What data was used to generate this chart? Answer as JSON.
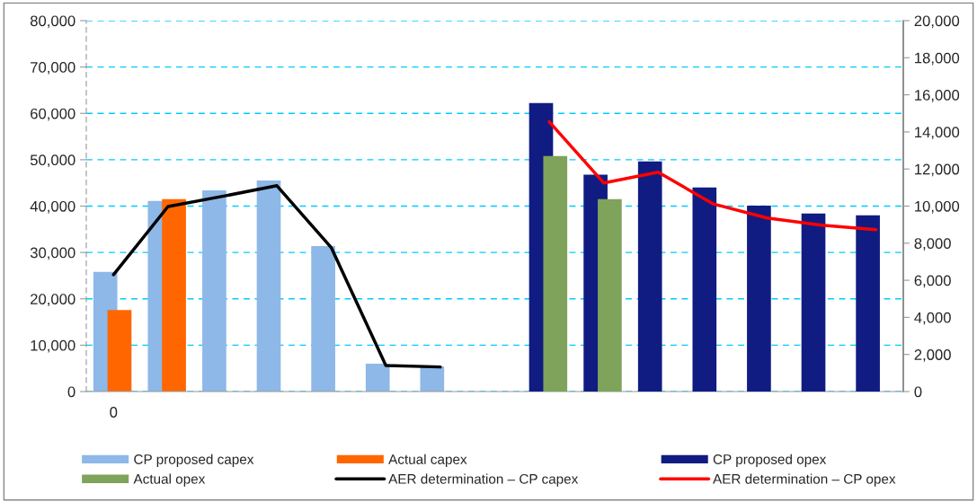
{
  "chart_data": {
    "type": "bar",
    "categories": [
      "0",
      null,
      null,
      null,
      null,
      null,
      null,
      null,
      null,
      null,
      null,
      null,
      null,
      null,
      null
    ],
    "series": [
      {
        "name": "CP proposed capex",
        "color": "#8db8e8",
        "values": [
          25800,
          41100,
          43400,
          45500,
          31400,
          6000,
          5400,
          null,
          null,
          null,
          null,
          null,
          null,
          null,
          null
        ]
      },
      {
        "name": "Actual capex",
        "color": "#ff6600",
        "values": [
          17600,
          41500,
          null,
          null,
          null,
          null,
          null,
          null,
          null,
          null,
          null,
          null,
          null,
          null,
          null
        ]
      },
      {
        "name": "CP proposed opex",
        "axis": "y2",
        "color": "#101c82",
        "values": [
          null,
          null,
          null,
          null,
          null,
          null,
          null,
          null,
          15560,
          11690,
          12410,
          11000,
          10030,
          9600,
          9500
        ]
      },
      {
        "name": "Actual opex",
        "axis": "y2",
        "color": "#7fa35a",
        "values": [
          null,
          null,
          null,
          null,
          null,
          null,
          null,
          null,
          12700,
          10380,
          null,
          null,
          null,
          null,
          null
        ]
      },
      {
        "name": "AER determination – CP capex",
        "type": "line",
        "color": "#000000",
        "values": [
          25200,
          39900,
          42100,
          44400,
          31000,
          5600,
          5300,
          null,
          null,
          null,
          null,
          null,
          null,
          null,
          null
        ]
      },
      {
        "name": "AER determination – CP opex",
        "type": "line",
        "axis": "y2",
        "color": "#ff0000",
        "values": [
          null,
          null,
          null,
          null,
          null,
          null,
          null,
          null,
          14550,
          11250,
          11830,
          10130,
          9360,
          8970,
          8730
        ]
      }
    ],
    "ylim": [
      0,
      80000
    ],
    "yticks": [
      {
        "value": 0,
        "label": "0"
      },
      {
        "value": 10000,
        "label": "10,000"
      },
      {
        "value": 20000,
        "label": "20,000"
      },
      {
        "value": 30000,
        "label": "30,000"
      },
      {
        "value": 40000,
        "label": "40,000"
      },
      {
        "value": 50000,
        "label": "50,000"
      },
      {
        "value": 60000,
        "label": "60,000"
      },
      {
        "value": 70000,
        "label": "70,000"
      },
      {
        "value": 80000,
        "label": "80,000"
      }
    ],
    "y2lim": [
      0,
      20000
    ],
    "y2ticks": [
      {
        "value": 0,
        "label": "0"
      },
      {
        "value": 2000,
        "label": "2,000"
      },
      {
        "value": 4000,
        "label": "4,000"
      },
      {
        "value": 6000,
        "label": "6,000"
      },
      {
        "value": 8000,
        "label": "8,000"
      },
      {
        "value": 10000,
        "label": "10,000"
      },
      {
        "value": 12000,
        "label": "12,000"
      },
      {
        "value": 14000,
        "label": "14,000"
      },
      {
        "value": 16000,
        "label": "16,000"
      },
      {
        "value": 18000,
        "label": "18,000"
      },
      {
        "value": 20000,
        "label": "20,000"
      }
    ],
    "grid": "y",
    "legend": "bottom",
    "line_style": "solid",
    "marker": "none"
  }
}
